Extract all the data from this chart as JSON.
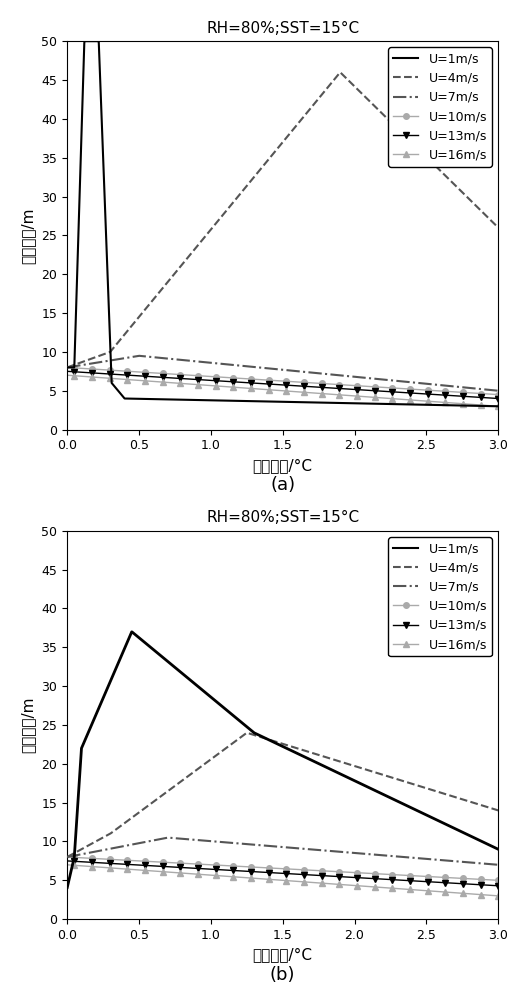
{
  "title": "RH=80%;SST=15°C",
  "xlabel": "气海温差/°C",
  "ylabel": "波导高度/m",
  "xlim": [
    0,
    3
  ],
  "ylim": [
    0,
    50
  ],
  "xticks": [
    0,
    0.5,
    1.0,
    1.5,
    2.0,
    2.5,
    3.0
  ],
  "yticks": [
    0,
    5,
    10,
    15,
    20,
    25,
    30,
    35,
    40,
    45,
    50
  ],
  "label_a": "(a)",
  "label_b": "(b)",
  "legend_entries": [
    "U=1m/s",
    "U=4m/s",
    "U=7m/s",
    "U=10m/s",
    "U=13m/s",
    "U=16m/s"
  ],
  "black": "#000000",
  "dgray": "#555555",
  "lgray": "#aaaaaa",
  "background_color": "#ffffff"
}
